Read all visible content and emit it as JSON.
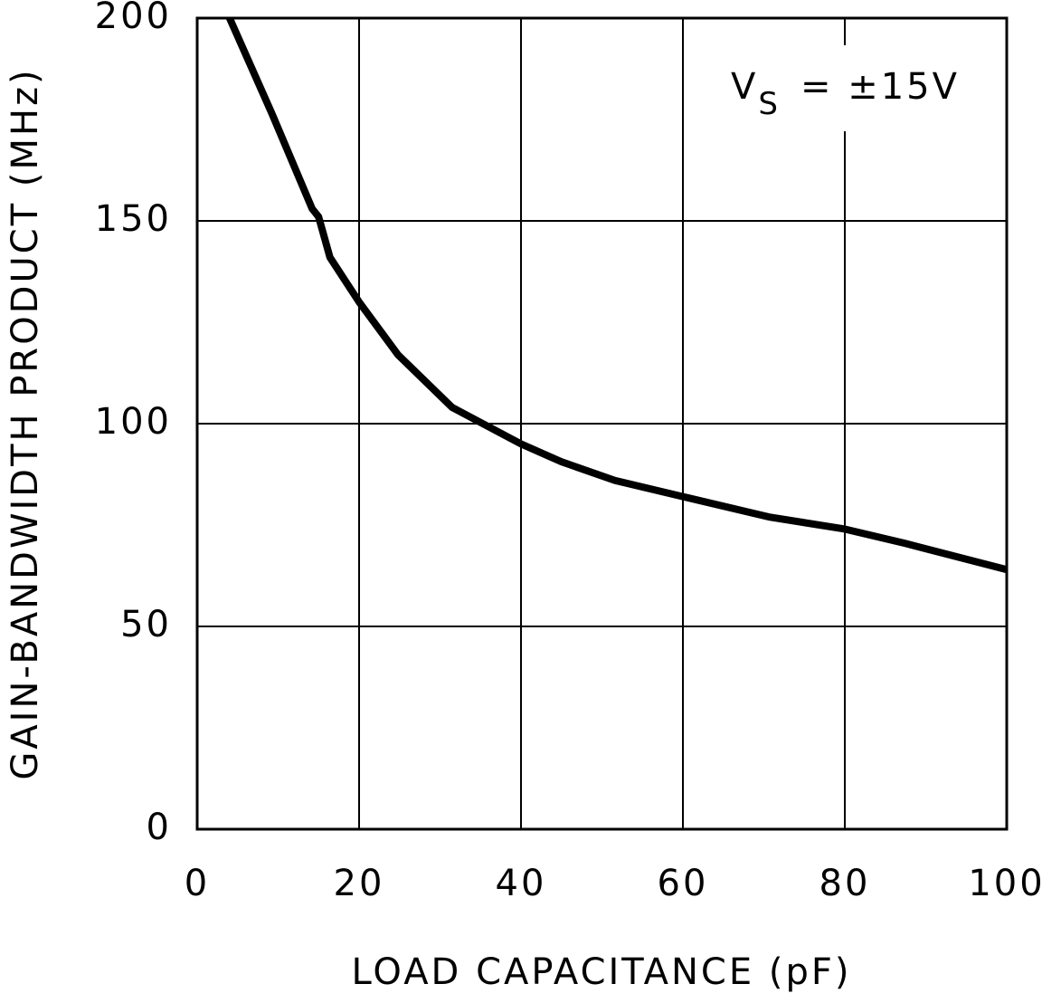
{
  "chart_data": {
    "type": "line",
    "xlabel": "LOAD CAPACITANCE (pF)",
    "ylabel": "GAIN-BANDWIDTH PRODUCT (MHz)",
    "annotation": {
      "main": "V",
      "sub": "S",
      "rest": "= ±15V"
    },
    "x": [
      4,
      9.2,
      14.2,
      15,
      16.4,
      20,
      24.8,
      31.5,
      40,
      45,
      51.6,
      60,
      70.6,
      80,
      87.4,
      100
    ],
    "series": [
      {
        "color": "#000000",
        "values": [
          200,
          176.6,
          153,
          151,
          141,
          130,
          117,
          104,
          95,
          90.6,
          86,
          82,
          77,
          74,
          70.5,
          64
        ]
      }
    ],
    "xlim": [
      0,
      100
    ],
    "xticks": [
      0,
      20,
      40,
      60,
      80,
      100
    ],
    "ylim": [
      0,
      200
    ],
    "yticks": [
      0,
      50,
      100,
      150,
      200
    ],
    "grid": true
  }
}
